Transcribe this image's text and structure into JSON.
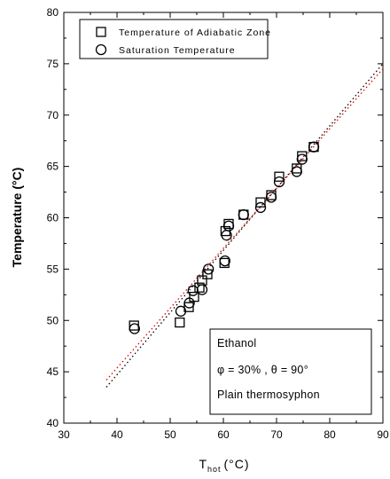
{
  "chart_data": {
    "type": "scatter",
    "xlabel": "T",
    "xlabel_subscript": "hot",
    "xlabel_unit": "(°C)",
    "ylabel": "Temperature (°C)",
    "xlim": [
      30,
      90
    ],
    "ylim": [
      40,
      80
    ],
    "x_ticks": [
      30,
      40,
      50,
      60,
      70,
      80,
      90
    ],
    "y_ticks": [
      40,
      45,
      50,
      55,
      60,
      65,
      70,
      75,
      80
    ],
    "grid": false,
    "legend_position": "top-left",
    "series": [
      {
        "name": "Temperature of Adiabatic Zone",
        "marker": "square",
        "points": [
          [
            43.2,
            49.5
          ],
          [
            51.8,
            49.8
          ],
          [
            53.5,
            51.3
          ],
          [
            54.5,
            52.3
          ],
          [
            55.5,
            53.2
          ],
          [
            56.0,
            53.9
          ],
          [
            57.0,
            54.5
          ],
          [
            60.2,
            55.6
          ],
          [
            60.4,
            58.7
          ],
          [
            61.0,
            59.4
          ],
          [
            63.8,
            60.3
          ],
          [
            67.0,
            61.5
          ],
          [
            69.0,
            62.2
          ],
          [
            70.5,
            64.0
          ],
          [
            73.8,
            64.8
          ],
          [
            74.8,
            66.0
          ],
          [
            77.0,
            66.9
          ]
        ]
      },
      {
        "name": "Saturation Temperature",
        "marker": "circle",
        "points": [
          [
            43.3,
            49.2
          ],
          [
            52.0,
            50.9
          ],
          [
            53.6,
            51.7
          ],
          [
            54.3,
            52.9
          ],
          [
            56.0,
            53.0
          ],
          [
            57.2,
            55.0
          ],
          [
            60.3,
            55.8
          ],
          [
            60.6,
            58.3
          ],
          [
            61.0,
            59.2
          ],
          [
            63.8,
            60.3
          ],
          [
            67.0,
            61.0
          ],
          [
            69.0,
            62.0
          ],
          [
            70.5,
            63.5
          ],
          [
            73.8,
            64.5
          ],
          [
            74.8,
            65.7
          ],
          [
            77.0,
            66.9
          ]
        ]
      }
    ],
    "fit_lines": [
      {
        "color": "#000000",
        "dash": "dotted",
        "x": [
          38,
          90
        ],
        "y": [
          43.5,
          75.0
        ]
      },
      {
        "color": "#e00000",
        "dash": "dotted",
        "x": [
          38,
          90
        ],
        "y": [
          44.2,
          74.5
        ]
      }
    ],
    "annotation": {
      "lines": [
        "Ethanol",
        "φ = 30% , θ = 90°",
        "Plain thermosyphon"
      ]
    }
  }
}
